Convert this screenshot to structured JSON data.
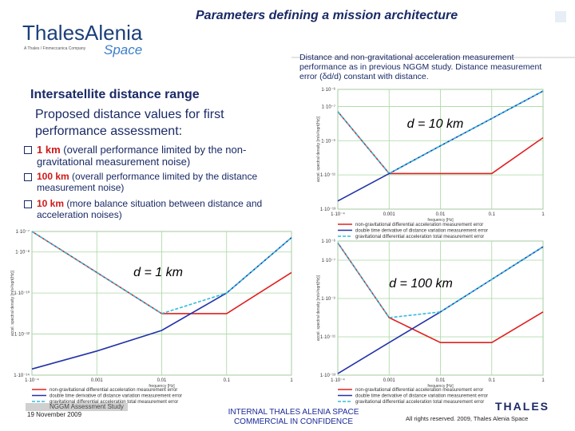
{
  "slide": {
    "title": "Parameters defining a mission architecture",
    "logo": {
      "name": "ThalesAlenia",
      "sub": "Space",
      "tagline": "A Thales / Finmeccanica Company"
    },
    "description": "Distance and non-gravitational acceleration measurement performance as in previous NGGM study. Distance measurement error (δd/d) constant with distance.",
    "heading": "Intersatellite distance range",
    "intro": "Proposed distance values for first performance assessment:",
    "bullets": [
      {
        "key": "1 km",
        "text": "(overall performance limited by the non-gravitational measurement noise)"
      },
      {
        "key": "100 km",
        "text": "(overall performance limited by the distance measurement noise)"
      },
      {
        "key": "10 km",
        "text": "(more balance situation between distance and acceleration noises)"
      }
    ],
    "footer": {
      "study": "NGGM Assessment Study",
      "date": "19 November 2009",
      "confidential": [
        "INTERNAL THALES ALENIA SPACE",
        "COMMERCIAL IN CONFIDENCE"
      ],
      "brand": "THALES",
      "rights": "All rights reserved. 2009, Thales Alenia Space"
    }
  },
  "chart_data": [
    {
      "type": "line",
      "annotation": "d = 10 km",
      "xlabel": "frequency [Hz]",
      "ylabel": "accel. spectral density [m/s²/sqrt(Hz)]",
      "log_x": true,
      "log_y": true,
      "grid": true,
      "xlim": [
        0.0001,
        1
      ],
      "ylim": [
        1e-13,
        1e-06
      ],
      "xticks": [
        {
          "value": 0.0001,
          "label": "1·10⁻⁴"
        },
        0.001,
        0.01,
        0.1,
        1
      ],
      "yticks": [
        {
          "value": 1e-13,
          "label": "1·10⁻¹³"
        },
        {
          "value": 1e-11,
          "label": "1·10⁻¹¹"
        },
        {
          "value": 1e-09,
          "label": "1·10⁻⁹"
        },
        {
          "value": 1e-07,
          "label": "1·10⁻⁷"
        },
        {
          "value": 1e-06,
          "label": "1·10⁻⁶"
        }
      ],
      "x": [
        0.0001,
        0.001,
        0.01,
        0.1,
        1
      ],
      "series": [
        {
          "name": "non-gravitational differential acceleration measurement error",
          "color": "#e02020",
          "values": [
            5e-08,
            1.2e-11,
            1.2e-11,
            1.2e-11,
            1.5e-09
          ]
        },
        {
          "name": "double time derivative of distance variation measurement error",
          "color": "#2233aa",
          "values": [
            3e-13,
            1.2e-11,
            5e-10,
            2e-08,
            8e-07
          ]
        },
        {
          "name": "gravitational differential acceleration total measurement error",
          "color": "#33bbdd",
          "values": [
            5e-08,
            1.2e-11,
            5e-10,
            2e-08,
            8e-07
          ]
        }
      ]
    },
    {
      "type": "line",
      "annotation": "d = 1 km",
      "xlabel": "frequency [Hz]",
      "ylabel": "accel. spectral density [m/s²/sqrt(Hz)]",
      "log_x": true,
      "log_y": true,
      "grid": true,
      "xlim": [
        0.0001,
        1
      ],
      "ylim": [
        1e-14,
        1e-07
      ],
      "xticks": [
        {
          "value": 0.0001,
          "label": "1·10⁻⁴"
        },
        0.001,
        0.01,
        0.1,
        1
      ],
      "yticks": [
        {
          "value": 1e-14,
          "label": "1·10⁻¹⁴"
        },
        {
          "value": 1e-12,
          "label": "1·10⁻¹²"
        },
        {
          "value": 1e-10,
          "label": "1·10⁻¹⁰"
        },
        {
          "value": 1e-08,
          "label": "1·10⁻⁸"
        },
        {
          "value": 1e-07,
          "label": "1·10⁻⁷"
        }
      ],
      "x": [
        0.0001,
        0.001,
        0.01,
        0.1,
        1
      ],
      "series": [
        {
          "name": "non-gravitational differential acceleration measurement error",
          "color": "#e02020",
          "values": [
            1e-07,
            1e-09,
            1e-11,
            1e-11,
            1e-09
          ]
        },
        {
          "name": "double time derivative of distance variation measurement error",
          "color": "#2233aa",
          "values": [
            2e-14,
            1.5e-13,
            1.5e-12,
            1e-10,
            5e-08
          ]
        },
        {
          "name": "gravitational differential acceleration total measurement error",
          "color": "#33bbdd",
          "values": [
            1e-07,
            1e-09,
            1e-11,
            1e-10,
            5e-08
          ]
        }
      ]
    },
    {
      "type": "line",
      "annotation": "d = 100 km",
      "xlabel": "frequency [Hz]",
      "ylabel": "accel. spectral density [m/s²/sqrt(Hz)]",
      "log_x": true,
      "log_y": true,
      "grid": true,
      "xlim": [
        0.0001,
        1
      ],
      "ylim": [
        1e-13,
        1e-06
      ],
      "xticks": [
        {
          "value": 0.0001,
          "label": "1·10⁻⁴"
        },
        0.001,
        0.01,
        0.1,
        1
      ],
      "yticks": [
        {
          "value": 1e-13,
          "label": "1·10⁻¹³"
        },
        {
          "value": 1e-11,
          "label": "1·10⁻¹¹"
        },
        {
          "value": 1e-09,
          "label": "1·10⁻⁹"
        },
        {
          "value": 1e-07,
          "label": "1·10⁻⁷"
        },
        {
          "value": 1e-06,
          "label": "1·10⁻⁶"
        }
      ],
      "x": [
        0.0001,
        0.001,
        0.01,
        0.1,
        1
      ],
      "series": [
        {
          "name": "non-gravitational differential acceleration measurement error",
          "color": "#e02020",
          "values": [
            8e-07,
            1e-10,
            5e-12,
            5e-12,
            2e-10
          ]
        },
        {
          "name": "double time derivative of distance variation measurement error",
          "color": "#2233aa",
          "values": [
            1.2e-13,
            5e-12,
            2e-10,
            1e-08,
            5e-07
          ]
        },
        {
          "name": "gravitational differential acceleration total measurement error",
          "color": "#33bbdd",
          "values": [
            8e-07,
            1e-10,
            2e-10,
            1e-08,
            5e-07
          ]
        }
      ]
    }
  ]
}
